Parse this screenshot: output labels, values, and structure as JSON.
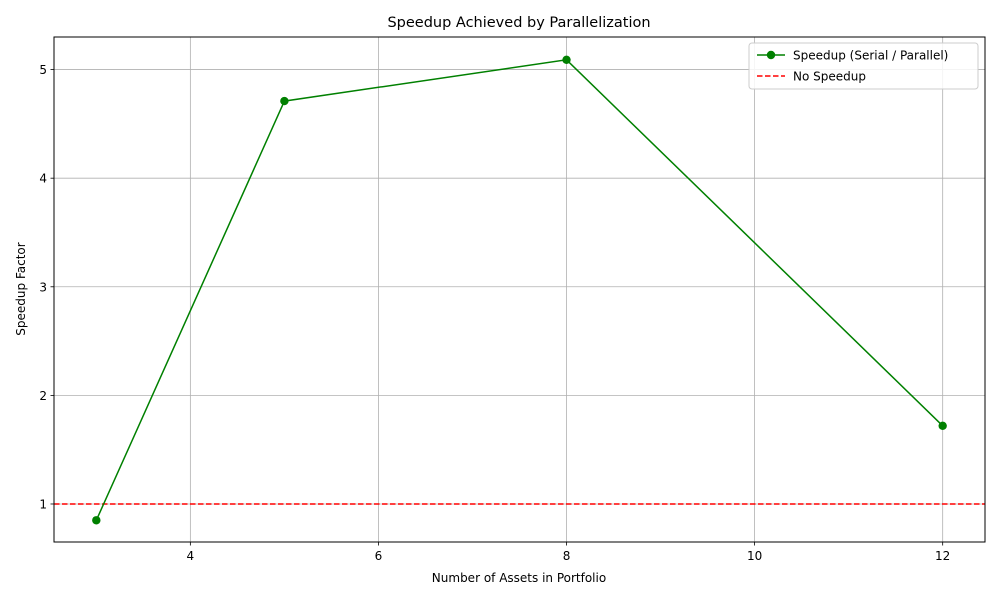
{
  "chart_data": {
    "type": "line",
    "title": "Speedup Achieved by Parallelization",
    "xlabel": "Number of Assets in Portfolio",
    "ylabel": "Speedup Factor",
    "xlim": [
      2.55,
      12.45
    ],
    "ylim": [
      0.65,
      5.3
    ],
    "xticks": [
      4,
      6,
      8,
      10,
      12
    ],
    "yticks": [
      1,
      2,
      3,
      4,
      5
    ],
    "grid": true,
    "legend_position": "top-right",
    "series": [
      {
        "name": "Speedup (Serial / Parallel)",
        "color": "#008000",
        "style": "solid",
        "marker": "circle",
        "x": [
          3,
          5,
          8,
          12
        ],
        "y": [
          0.85,
          4.71,
          5.09,
          1.72
        ]
      }
    ],
    "reference_lines": [
      {
        "name": "No Speedup",
        "orientation": "horizontal",
        "y": 1,
        "color": "#ff0000",
        "style": "dashed"
      }
    ]
  }
}
